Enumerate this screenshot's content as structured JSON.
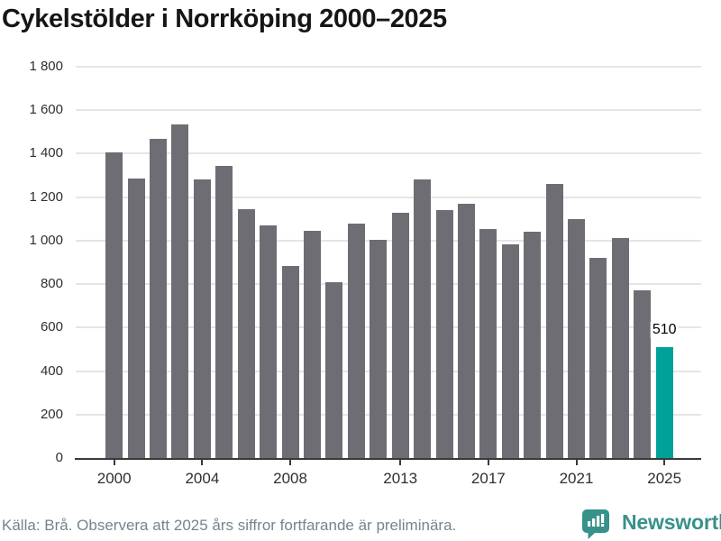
{
  "title": "Cykelstölder i Norrköping 2000–2025",
  "chart_data": {
    "type": "bar",
    "title": "Cykelstölder i Norrköping 2000–2025",
    "categories": [
      "2000",
      "2001",
      "2002",
      "2003",
      "2004",
      "2005",
      "2006",
      "2007",
      "2008",
      "2009",
      "2010",
      "2011",
      "2012",
      "2013",
      "2014",
      "2015",
      "2016",
      "2017",
      "2018",
      "2019",
      "2020",
      "2021",
      "2022",
      "2023",
      "2024",
      "2025"
    ],
    "values": [
      1405,
      1285,
      1470,
      1535,
      1280,
      1345,
      1145,
      1070,
      885,
      1045,
      810,
      1080,
      1005,
      1130,
      1280,
      1140,
      1170,
      1055,
      985,
      1040,
      1260,
      1100,
      920,
      1010,
      770,
      510
    ],
    "xlabel": "",
    "ylabel": "",
    "ylim": [
      0,
      1800
    ],
    "ytick_step": 200,
    "ytick_labels": [
      "0",
      "200",
      "400",
      "600",
      "800",
      "1 000",
      "1 200",
      "1 400",
      "1 600",
      "1 800"
    ],
    "xtick_labels": [
      "2000",
      "2004",
      "2008",
      "2013",
      "2017",
      "2021",
      "2025"
    ],
    "grid": true,
    "legend": "none",
    "bar_color": "#6d6d73",
    "highlight": {
      "category": "2025",
      "color": "#00a198",
      "data_label": "510"
    }
  },
  "footer": {
    "source_text": "Källa: Brå. Observera att 2025 års siffror fortfarande är preliminära.",
    "brand_text": "Newsworthy",
    "brand_color": "#38918a"
  }
}
